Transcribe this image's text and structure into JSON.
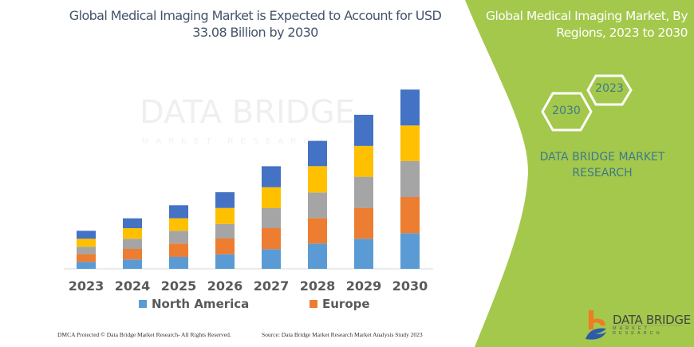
{
  "title": "Global Medical Imaging Market is Expected to Account for USD 33.08 Billion by 2030",
  "side_panel": {
    "title": "Global Medical Imaging Market, By Regions, 2023 to 2030",
    "hex_years": [
      "2023",
      "2030"
    ],
    "brand_line1": "DATA BRIDGE MARKET",
    "brand_line2": "RESEARCH",
    "background_color": "#a3c84b"
  },
  "watermark": {
    "line1": "DATA BRIDGE",
    "line2": "MARKET RESEARCH"
  },
  "logo": {
    "name": "DATA BRIDGE",
    "tagline": "MARKET RESEARCH"
  },
  "footer": {
    "left": "DMCA Protected © Data Bridge Market Research-  All Rights Reserved.",
    "right": "Source:  Data Bridge Market Research  Market Analysis Study 2023"
  },
  "chart_data": {
    "type": "bar",
    "stacked": true,
    "title": "Global Medical Imaging Market is Expected to Account for USD 33.08 Billion by 2030",
    "categories": [
      "2023",
      "2024",
      "2025",
      "2026",
      "2027",
      "2028",
      "2029",
      "2030"
    ],
    "y_axis_shown": false,
    "grid": false,
    "legend": "bottom",
    "series": [
      {
        "name": "North America",
        "color": "#5b9bd5",
        "values": [
          8.7,
          11.7,
          15,
          18.3,
          24.7,
          31.7,
          37.7,
          44.7
        ]
      },
      {
        "name": "Europe",
        "color": "#ed7d31",
        "values": [
          9.7,
          13.3,
          16.7,
          19.7,
          26.3,
          32,
          38.7,
          45.3
        ]
      },
      {
        "color": "#a5a5a5",
        "values": [
          9.3,
          12.7,
          16,
          18.3,
          25,
          32,
          39,
          45
        ]
      },
      {
        "color": "#ffc000",
        "values": [
          10,
          13.3,
          15.7,
          20,
          26.3,
          33,
          38.7,
          44.7
        ]
      },
      {
        "color": "#4472c4",
        "values": [
          10,
          12.3,
          16.3,
          19.7,
          26.3,
          31.7,
          39,
          45
        ]
      }
    ]
  }
}
